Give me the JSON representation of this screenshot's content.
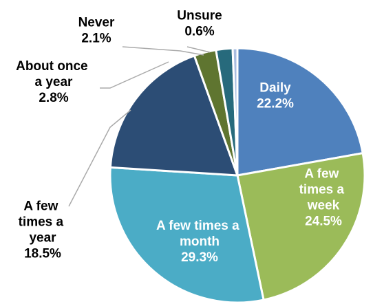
{
  "chart_data": {
    "type": "pie",
    "categories": [
      "Daily",
      "A few times a week",
      "A few times a month",
      "A few times a year",
      "About once a year",
      "Never",
      "Unsure"
    ],
    "values": [
      22.2,
      24.5,
      29.3,
      18.5,
      2.8,
      2.1,
      0.6
    ],
    "value_labels": [
      "22.2%",
      "24.5%",
      "29.3%",
      "18.5%",
      "2.8%",
      "2.1%",
      "0.6%"
    ],
    "colors": [
      "#4f81bd",
      "#9bbb59",
      "#4bacc6",
      "#2c4d75",
      "#5f7530",
      "#276a7c",
      "#a9bde0"
    ]
  }
}
